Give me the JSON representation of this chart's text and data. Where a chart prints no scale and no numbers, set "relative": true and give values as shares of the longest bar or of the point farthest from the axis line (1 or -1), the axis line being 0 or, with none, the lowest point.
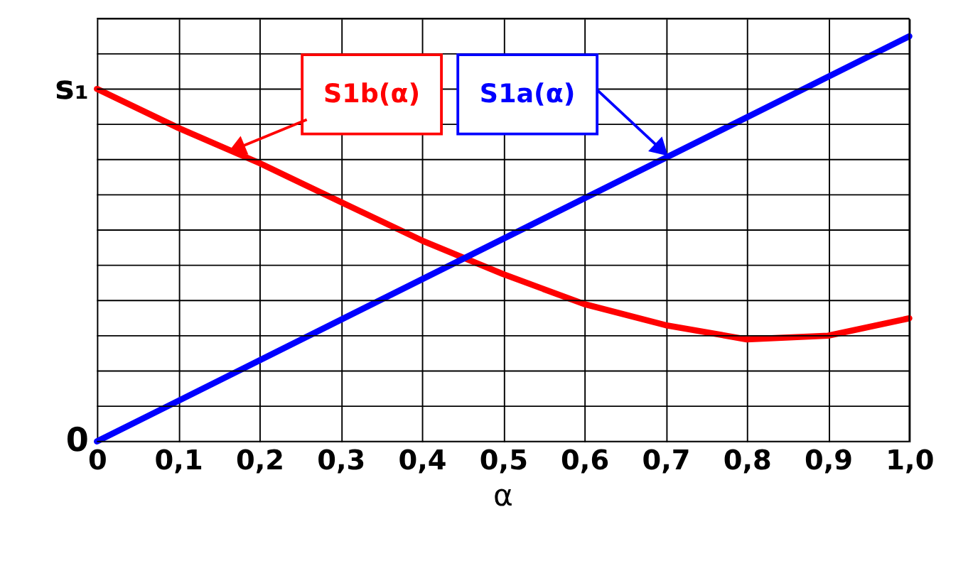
{
  "chart_data": {
    "type": "line",
    "xlabel": "α",
    "relative": true,
    "x": [
      0,
      0.1,
      0.2,
      0.3,
      0.4,
      0.5,
      0.6,
      0.7,
      0.8,
      0.9,
      1.0
    ],
    "series": [
      {
        "color": "#ff0000",
        "values": [
          0.87,
          0.774,
          0.687,
          0.591,
          0.496,
          0.413,
          0.339,
          0.287,
          0.252,
          0.261,
          0.304
        ]
      },
      {
        "color": "#0000ff",
        "x": [
          0,
          1.0
        ],
        "values": [
          0,
          1
        ]
      }
    ],
    "xlim": [
      0,
      1.0
    ],
    "xticks": [
      0,
      {
        "value": 0.1,
        "label": "0,1"
      },
      {
        "value": 0.2,
        "label": "0,2"
      },
      {
        "value": 0.3,
        "label": "0,3"
      },
      {
        "value": 0.4,
        "label": "0,4"
      },
      {
        "value": 0.5,
        "label": "0,5"
      },
      {
        "value": 0.6,
        "label": "0,6"
      },
      {
        "value": 0.7,
        "label": "0,7"
      },
      {
        "value": 0.8,
        "label": "0,8"
      },
      {
        "value": 0.9,
        "label": "0,9"
      },
      {
        "value": 1.0,
        "label": "1,0"
      }
    ],
    "grid": true,
    "marker": "none",
    "line_style": "solid",
    "annotations": [
      "S1b(α)",
      "S1a(α)",
      {
        "text": "s₁",
        "x": 0,
        "y": 0.87
      },
      {
        "text": "0",
        "x": 0,
        "y": 0
      }
    ]
  }
}
